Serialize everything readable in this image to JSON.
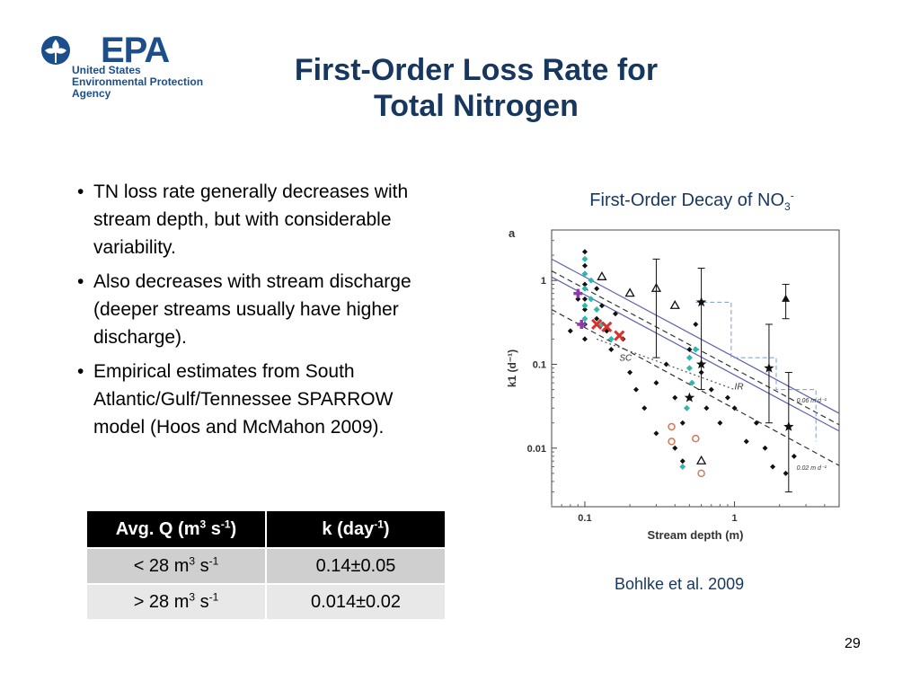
{
  "logo": {
    "word": "EPA",
    "agency_lines": [
      "United States",
      "Environmental Protection",
      "Agency"
    ]
  },
  "title_lines": [
    "First-Order Loss Rate for",
    "Total Nitrogen"
  ],
  "bullets": [
    "TN loss rate generally decreases with stream depth, but with considerable variability.",
    "Also decreases with stream discharge (deeper streams usually have higher discharge).",
    "Empirical estimates from South Atlantic/Gulf/Tennessee SPARROW model (Hoos and McMahon 2009)."
  ],
  "table": {
    "header": {
      "col1": {
        "text": "Avg. Q (m",
        "sup1": "3",
        "mid": " s",
        "sup2": "-1",
        "end": ")"
      },
      "col2": {
        "text": "k (day",
        "sup": "-1",
        "end": ")"
      }
    },
    "rows": [
      {
        "q_text": "< 28 m",
        "q_sup1": "3",
        "q_mid": " s",
        "q_sup2": "-1",
        "k": "0.14±0.05"
      },
      {
        "q_text": "> 28 m",
        "q_sup1": "3",
        "q_mid": " s",
        "q_sup2": "-1",
        "k": "0.014±0.02"
      }
    ]
  },
  "chart_caption": {
    "text": "First-Order Decay of NO",
    "sub": "3",
    "sup": "-"
  },
  "credit": "Bohlke et al. 2009",
  "page_number": "29",
  "chart_data": {
    "type": "scatter",
    "panel_label": "a",
    "xlabel": "Stream depth (m)",
    "ylabel": "k1 (d⁻¹)",
    "x_scale": "log",
    "y_scale": "log",
    "xlim": [
      0.06,
      5
    ],
    "ylim": [
      0.002,
      4
    ],
    "x_ticks": [
      {
        "value": 0.1,
        "label": "0.1"
      },
      {
        "value": 1,
        "label": "1"
      }
    ],
    "y_ticks": [
      {
        "value": 0.01,
        "label": "0.01"
      },
      {
        "value": 0.1,
        "label": "0.1"
      },
      {
        "value": 1,
        "label": "1"
      }
    ],
    "annotations": [
      {
        "text": "SC",
        "x": 0.17,
        "y": 0.11
      },
      {
        "text": "IR",
        "x": 1.0,
        "y": 0.05
      },
      {
        "text": "0.06 m d⁻¹",
        "x": 2.6,
        "y": 0.035
      },
      {
        "text": "0.02 m d⁻¹",
        "x": 2.6,
        "y": 0.0055
      }
    ],
    "lines": [
      {
        "style": "solid-blue",
        "points": [
          [
            0.06,
            1.8
          ],
          [
            5,
            0.026
          ]
        ]
      },
      {
        "style": "solid-blue",
        "points": [
          [
            0.06,
            1.1
          ],
          [
            5,
            0.016
          ]
        ]
      },
      {
        "style": "dashed-black",
        "points": [
          [
            0.06,
            1.3
          ],
          [
            5,
            0.019
          ]
        ]
      },
      {
        "style": "dashed-black",
        "points": [
          [
            0.06,
            0.45
          ],
          [
            5,
            0.0062
          ]
        ]
      },
      {
        "style": "dotted",
        "points": [
          [
            0.12,
            0.2
          ],
          [
            1.0,
            0.05
          ]
        ]
      }
    ],
    "series": [
      {
        "marker": "diamond-black",
        "points": [
          [
            0.1,
            2.2
          ],
          [
            0.1,
            1.5
          ],
          [
            0.1,
            0.9
          ],
          [
            0.1,
            0.6
          ],
          [
            0.1,
            0.45
          ],
          [
            0.1,
            0.3
          ],
          [
            0.1,
            0.2
          ],
          [
            0.08,
            0.25
          ],
          [
            0.09,
            0.6
          ],
          [
            0.12,
            0.8
          ],
          [
            0.12,
            0.35
          ],
          [
            0.13,
            0.5
          ],
          [
            0.14,
            0.25
          ],
          [
            0.15,
            0.15
          ],
          [
            0.16,
            0.4
          ],
          [
            0.18,
            0.2
          ],
          [
            0.2,
            0.08
          ],
          [
            0.22,
            0.05
          ],
          [
            0.25,
            0.03
          ],
          [
            0.3,
            0.06
          ],
          [
            0.35,
            0.1
          ],
          [
            0.4,
            0.04
          ],
          [
            0.45,
            0.02
          ],
          [
            0.5,
            0.15
          ],
          [
            0.55,
            0.3
          ],
          [
            0.6,
            0.08
          ],
          [
            0.65,
            0.03
          ],
          [
            0.7,
            0.05
          ],
          [
            0.8,
            0.02
          ],
          [
            0.9,
            0.04
          ],
          [
            1.0,
            0.03
          ],
          [
            1.2,
            0.012
          ],
          [
            1.4,
            0.02
          ],
          [
            1.6,
            0.01
          ],
          [
            1.8,
            0.006
          ],
          [
            2.2,
            0.005
          ],
          [
            2.5,
            0.008
          ],
          [
            0.4,
            0.01
          ],
          [
            0.45,
            0.007
          ],
          [
            0.3,
            0.015
          ]
        ]
      },
      {
        "marker": "diamond-cyan",
        "points": [
          [
            0.1,
            1.8
          ],
          [
            0.1,
            1.2
          ],
          [
            0.1,
            0.8
          ],
          [
            0.1,
            0.5
          ],
          [
            0.1,
            0.35
          ],
          [
            0.11,
            1.0
          ],
          [
            0.11,
            0.6
          ],
          [
            0.12,
            0.45
          ],
          [
            0.13,
            0.3
          ],
          [
            0.15,
            0.2
          ],
          [
            0.5,
            0.12
          ],
          [
            0.5,
            0.09
          ],
          [
            0.52,
            0.06
          ],
          [
            0.55,
            0.15
          ],
          [
            0.5,
            0.04
          ],
          [
            0.48,
            0.03
          ],
          [
            0.45,
            0.006
          ]
        ]
      },
      {
        "marker": "triangle-open",
        "points": [
          [
            0.13,
            1.1
          ],
          [
            0.2,
            0.7
          ],
          [
            0.3,
            0.8
          ],
          [
            0.4,
            0.5
          ],
          [
            0.6,
            0.007
          ]
        ]
      },
      {
        "marker": "triangle-filled",
        "points": [
          [
            2.2,
            0.6
          ]
        ]
      },
      {
        "marker": "star",
        "points": [
          [
            0.6,
            0.55
          ],
          [
            0.6,
            0.1
          ],
          [
            0.5,
            0.04
          ],
          [
            1.7,
            0.09
          ],
          [
            2.3,
            0.018
          ]
        ]
      },
      {
        "marker": "cross-red",
        "points": [
          [
            0.12,
            0.3
          ],
          [
            0.14,
            0.28
          ],
          [
            0.17,
            0.22
          ]
        ]
      },
      {
        "marker": "plus-purple",
        "points": [
          [
            0.09,
            0.7
          ],
          [
            0.095,
            0.3
          ]
        ]
      },
      {
        "marker": "circle-orange",
        "points": [
          [
            0.38,
            0.018
          ],
          [
            0.38,
            0.012
          ],
          [
            0.55,
            0.013
          ],
          [
            0.6,
            0.005
          ]
        ]
      },
      {
        "marker": "errorbar",
        "points": [
          [
            0.3,
            0.5,
            0.12,
            1.8
          ],
          [
            0.6,
            0.5,
            0.05,
            1.4
          ],
          [
            1.7,
            0.09,
            0.02,
            0.3
          ],
          [
            2.3,
            0.018,
            0.003,
            0.08
          ],
          [
            2.2,
            0.6,
            0.35,
            0.9
          ]
        ]
      }
    ]
  }
}
